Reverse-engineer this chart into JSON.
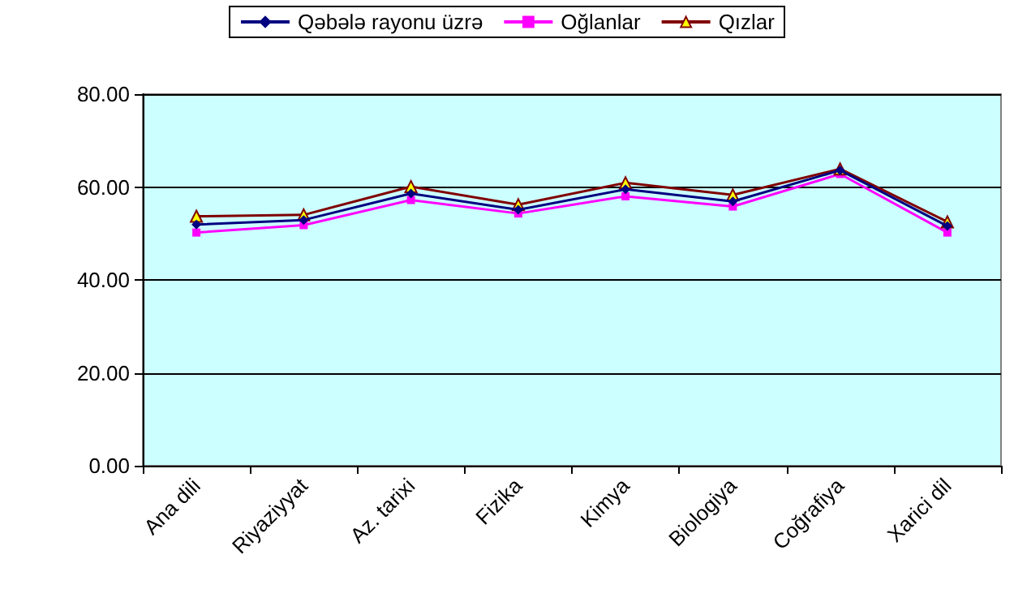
{
  "chart_data": {
    "type": "line",
    "categories": [
      "Ana dili",
      "Riyaziyyat",
      "Az. tarixi",
      "Fizika",
      "Kimya",
      "Biologiya",
      "Coğrafiya",
      "Xarici dil"
    ],
    "series": [
      {
        "name": "Qəbələ rayonu üzrə",
        "color": "#000080",
        "marker": "diamond",
        "values": [
          51.9,
          52.9,
          58.6,
          55.1,
          59.5,
          56.9,
          63.6,
          51.6
        ]
      },
      {
        "name": "Oğlanlar",
        "color": "#ff00ff",
        "marker": "square",
        "values": [
          50.2,
          51.8,
          57.2,
          54.3,
          58.0,
          55.8,
          62.8,
          50.2
        ]
      },
      {
        "name": "Qızlar",
        "color": "#800000",
        "marker": "triangle",
        "values": [
          53.7,
          54.0,
          60.1,
          56.2,
          60.9,
          58.3,
          63.9,
          52.5
        ]
      }
    ],
    "ylim": [
      0,
      80
    ],
    "yticks": [
      {
        "value": 0,
        "label": "0.00"
      },
      {
        "value": 20,
        "label": "20.00"
      },
      {
        "value": 40,
        "label": "40.00"
      },
      {
        "value": 60,
        "label": "60.00"
      },
      {
        "value": 80,
        "label": "80.00"
      }
    ],
    "grid": "y",
    "legend": "top"
  }
}
